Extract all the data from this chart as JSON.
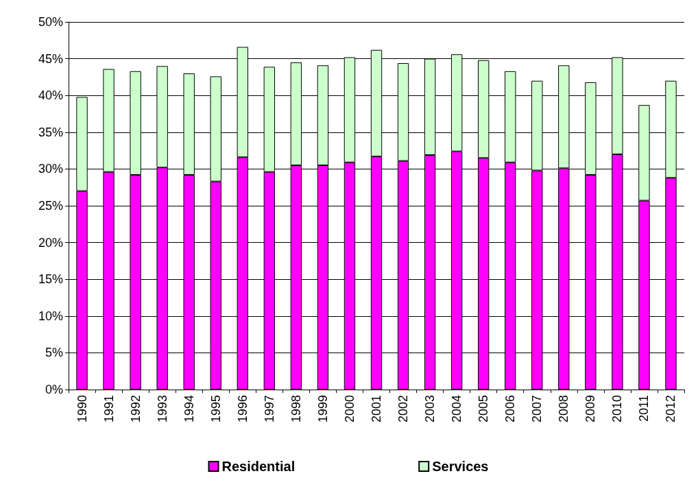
{
  "chart_data": {
    "type": "bar",
    "stacked": true,
    "categories": [
      "1990",
      "1991",
      "1992",
      "1993",
      "1994",
      "1995",
      "1996",
      "1997",
      "1998",
      "1999",
      "2000",
      "2001",
      "2002",
      "2003",
      "2004",
      "2005",
      "2006",
      "2007",
      "2008",
      "2009",
      "2010",
      "2011",
      "2012"
    ],
    "series": [
      {
        "name": "Residential",
        "color": "#ff00ff",
        "values": [
          27.0,
          29.6,
          29.2,
          30.2,
          29.2,
          28.3,
          31.6,
          29.6,
          30.5,
          30.5,
          30.9,
          31.7,
          31.1,
          31.9,
          32.4,
          31.5,
          30.9,
          29.8,
          30.1,
          29.2,
          32.0,
          25.7,
          28.8
        ]
      },
      {
        "name": "Services",
        "color": "#ccffcc",
        "values": [
          12.8,
          14.0,
          14.1,
          13.8,
          13.8,
          14.3,
          15.0,
          14.3,
          14.0,
          13.6,
          14.3,
          14.5,
          13.3,
          13.1,
          13.2,
          13.3,
          12.4,
          12.2,
          14.0,
          12.6,
          13.2,
          13.0,
          13.2
        ]
      }
    ],
    "ylim": [
      0,
      50
    ],
    "yticks": [
      {
        "value": 0,
        "label": "0%"
      },
      {
        "value": 5,
        "label": "5%"
      },
      {
        "value": 10,
        "label": "10%"
      },
      {
        "value": 15,
        "label": "15%"
      },
      {
        "value": 20,
        "label": "20%"
      },
      {
        "value": 25,
        "label": "25%"
      },
      {
        "value": 30,
        "label": "30%"
      },
      {
        "value": 35,
        "label": "35%"
      },
      {
        "value": 40,
        "label": "40%"
      },
      {
        "value": 45,
        "label": "45%"
      },
      {
        "value": 50,
        "label": "50%"
      }
    ],
    "grid": "y",
    "legend": "bottom"
  }
}
